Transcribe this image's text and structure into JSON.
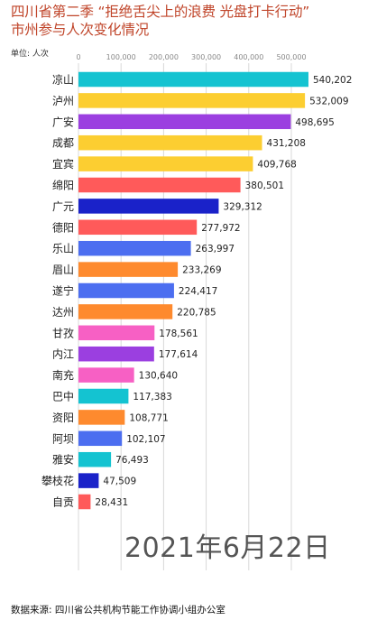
{
  "header": {
    "title_line1": "四川省第二季 “拒绝舌尖上的浪费 光盘打卡行动”",
    "title_line2": "市州参与人次变化情况",
    "unit_label": "单位: 人次"
  },
  "date_stamp": "2021年6月22日",
  "footer": {
    "source": "数据来源: 四川省公共机构节能工作协调小组办公室"
  },
  "colors": {
    "title": "#c0452a",
    "grid": "#d9d9d9"
  },
  "chart_data": {
    "type": "bar",
    "orientation": "horizontal",
    "title": "四川省第二季 “拒绝舌尖上的浪费 光盘打卡行动” 市州参与人次变化情况",
    "xlabel": "",
    "ylabel": "单位: 人次",
    "xlim": [
      0,
      550000
    ],
    "xticks": [
      0,
      100000,
      200000,
      300000,
      400000,
      500000
    ],
    "xtick_labels": [
      "0",
      "100,000",
      "200,000",
      "300,000",
      "400,000",
      "500,000"
    ],
    "grid": true,
    "categories": [
      "凉山",
      "泸州",
      "广安",
      "成都",
      "宜宾",
      "绵阳",
      "广元",
      "德阳",
      "乐山",
      "眉山",
      "遂宁",
      "达州",
      "甘孜",
      "内江",
      "南充",
      "巴中",
      "资阳",
      "阿坝",
      "雅安",
      "攀枝花",
      "自贡"
    ],
    "values": [
      540202,
      532009,
      498695,
      431208,
      409768,
      380501,
      329312,
      277972,
      263997,
      233269,
      224417,
      220785,
      178561,
      177614,
      130640,
      117383,
      108771,
      102107,
      76493,
      47509,
      28431
    ],
    "value_labels": [
      "540,202",
      "532,009",
      "498,695",
      "431,208",
      "409,768",
      "380,501",
      "329,312",
      "277,972",
      "263,997",
      "233,269",
      "224,417",
      "220,785",
      "178,561",
      "177,614",
      "130,640",
      "117,383",
      "108,771",
      "102,107",
      "76,493",
      "47,509",
      "28,431"
    ],
    "bar_colors": [
      "#14c3d1",
      "#fcce31",
      "#9b3fe0",
      "#fcce31",
      "#fcce31",
      "#ff5a5a",
      "#1a22c9",
      "#ff5a5a",
      "#4c6ef0",
      "#fe8a2e",
      "#4c6ef0",
      "#fe8a2e",
      "#f760c4",
      "#9b3fe0",
      "#f760c4",
      "#14c3d1",
      "#fe8a2e",
      "#4c6ef0",
      "#14c3d1",
      "#1a22c9",
      "#ff5a5a"
    ]
  }
}
